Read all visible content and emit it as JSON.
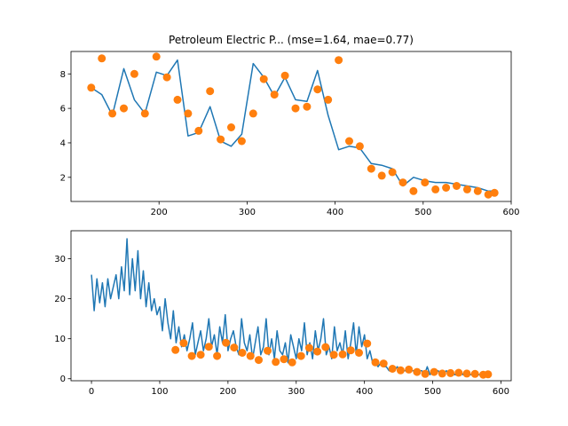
{
  "chart_data": [
    {
      "type": "line+scatter",
      "title": "Petroleum Electric P... (mse=1.64, mae=0.77)",
      "xlim": [
        100,
        600
      ],
      "ylim": [
        0.6,
        9.3
      ],
      "xticks": [
        200,
        300,
        400,
        500,
        600
      ],
      "yticks": [
        2,
        4,
        6,
        8
      ],
      "colors": {
        "line": "#1f77b4",
        "points": "#ff7f0e"
      },
      "series": [
        {
          "kind": "line",
          "x": [
            123,
            135,
            147,
            160,
            172,
            184,
            197,
            209,
            221,
            233,
            245,
            258,
            270,
            282,
            294,
            307,
            319,
            331,
            343,
            355,
            368,
            380,
            392,
            404,
            416,
            428,
            441,
            453,
            465,
            477,
            489,
            502,
            514,
            526,
            538,
            550,
            562,
            574,
            581
          ],
          "y": [
            7.2,
            6.8,
            5.6,
            8.3,
            6.5,
            5.7,
            8.1,
            7.9,
            8.8,
            4.4,
            4.6,
            6.1,
            4.1,
            3.8,
            4.5,
            8.6,
            7.8,
            6.7,
            7.8,
            6.5,
            6.4,
            8.2,
            5.6,
            3.6,
            3.8,
            3.7,
            2.8,
            2.7,
            2.5,
            1.5,
            2.0,
            1.8,
            1.7,
            1.7,
            1.6,
            1.5,
            1.4,
            1.2,
            1.2
          ]
        },
        {
          "kind": "scatter",
          "x": [
            123,
            135,
            147,
            160,
            172,
            184,
            197,
            209,
            221,
            233,
            245,
            258,
            270,
            282,
            294,
            307,
            319,
            331,
            343,
            355,
            368,
            380,
            392,
            404,
            416,
            428,
            441,
            453,
            465,
            477,
            489,
            502,
            514,
            526,
            538,
            550,
            562,
            574,
            581
          ],
          "y": [
            7.2,
            8.9,
            5.7,
            6.0,
            8.0,
            5.7,
            9.0,
            7.8,
            6.5,
            5.7,
            4.7,
            7.0,
            4.2,
            4.9,
            4.1,
            5.7,
            7.7,
            6.8,
            7.9,
            6.0,
            6.1,
            7.1,
            6.5,
            8.8,
            4.1,
            3.8,
            2.5,
            2.1,
            2.3,
            1.7,
            1.2,
            1.7,
            1.3,
            1.4,
            1.5,
            1.3,
            1.2,
            1.0,
            1.1
          ]
        }
      ]
    },
    {
      "type": "line+scatter",
      "xlim": [
        -30,
        615
      ],
      "ylim": [
        -0.5,
        37
      ],
      "xticks": [
        0,
        100,
        200,
        300,
        400,
        500,
        600
      ],
      "yticks": [
        0,
        10,
        20,
        30
      ],
      "colors": {
        "line": "#1f77b4",
        "points": "#ff7f0e"
      },
      "series": [
        {
          "kind": "line",
          "x": [
            0,
            4,
            8,
            12,
            16,
            20,
            24,
            28,
            32,
            36,
            40,
            44,
            48,
            52,
            56,
            60,
            64,
            68,
            72,
            76,
            80,
            84,
            88,
            92,
            96,
            100,
            104,
            108,
            112,
            116,
            120,
            124,
            128,
            132,
            136,
            140,
            144,
            148,
            152,
            156,
            160,
            164,
            168,
            172,
            176,
            180,
            184,
            188,
            192,
            196,
            200,
            204,
            208,
            212,
            216,
            220,
            224,
            228,
            232,
            236,
            240,
            244,
            248,
            252,
            256,
            260,
            264,
            268,
            272,
            276,
            280,
            284,
            288,
            292,
            296,
            300,
            304,
            308,
            312,
            316,
            320,
            324,
            328,
            332,
            336,
            340,
            344,
            348,
            352,
            356,
            360,
            364,
            368,
            372,
            376,
            380,
            384,
            388,
            392,
            396,
            400,
            404,
            408,
            412,
            416,
            420,
            424,
            428,
            432,
            436,
            440,
            444,
            448,
            452,
            456,
            460,
            464,
            468,
            472,
            476,
            480,
            484,
            488,
            492,
            496,
            500,
            504,
            508,
            512,
            516,
            520,
            524,
            528,
            532,
            536,
            540,
            544,
            548,
            552,
            556,
            560,
            564,
            568,
            572,
            576,
            580,
            584
          ],
          "y": [
            26,
            17,
            25,
            19,
            24,
            18,
            25,
            20,
            23,
            26,
            20,
            28,
            22,
            35,
            21,
            30,
            22,
            32,
            20,
            27,
            18,
            24,
            17,
            20,
            16,
            18,
            12,
            20,
            14,
            10,
            17,
            9,
            13,
            8,
            11,
            7,
            10,
            14,
            6,
            9,
            12,
            7,
            10,
            15,
            8,
            11,
            6,
            13,
            9,
            16,
            7,
            10,
            12,
            8,
            6,
            15,
            9,
            7,
            11,
            5,
            9,
            13,
            6,
            8,
            15,
            6,
            10,
            5,
            12,
            7,
            6,
            9,
            4,
            11,
            8,
            5,
            10,
            7,
            14,
            6,
            9,
            5,
            12,
            7,
            10,
            15,
            6,
            8,
            5,
            13,
            7,
            9,
            6,
            12,
            5,
            9,
            14,
            6,
            13,
            8,
            11,
            5,
            7,
            4,
            4,
            3,
            4,
            3,
            3,
            2,
            3,
            2,
            3,
            2,
            2,
            2,
            2,
            2,
            2,
            1,
            2,
            2,
            1,
            3,
            1,
            2,
            1,
            2,
            1,
            1,
            2,
            1,
            2,
            1,
            1,
            2,
            1,
            2,
            1,
            1,
            1,
            1,
            1,
            1,
            1,
            1,
            1
          ]
        },
        {
          "kind": "scatter",
          "x": [
            123,
            135,
            147,
            160,
            172,
            184,
            197,
            209,
            221,
            233,
            245,
            258,
            270,
            282,
            294,
            307,
            319,
            331,
            343,
            355,
            368,
            380,
            392,
            404,
            416,
            428,
            441,
            453,
            465,
            477,
            489,
            502,
            514,
            526,
            538,
            550,
            562,
            574,
            581
          ],
          "y": [
            7.2,
            8.9,
            5.7,
            6.0,
            8.0,
            5.7,
            9.0,
            7.8,
            6.5,
            5.7,
            4.7,
            7.0,
            4.2,
            4.9,
            4.1,
            5.7,
            7.7,
            6.8,
            7.9,
            6.0,
            6.1,
            7.1,
            6.5,
            8.8,
            4.1,
            3.8,
            2.5,
            2.1,
            2.3,
            1.7,
            1.2,
            1.7,
            1.3,
            1.4,
            1.5,
            1.3,
            1.2,
            1.0,
            1.1
          ]
        }
      ]
    }
  ]
}
